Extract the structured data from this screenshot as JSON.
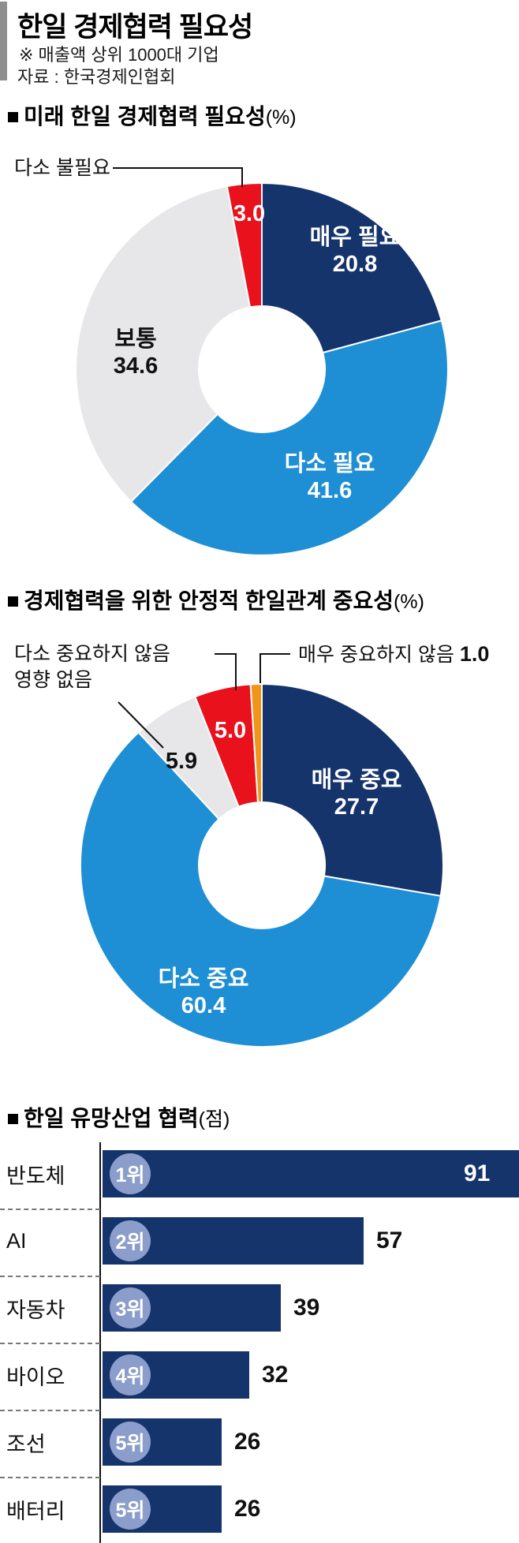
{
  "header": {
    "title": "한일 경제협력 필요성",
    "note": "※ 매출액 상위 1000대 기업",
    "source": "자료 : 한국경제인협회"
  },
  "colors": {
    "navy": "#16346c",
    "light_blue": "#1e8fd4",
    "gray": "#e7e7e9",
    "red": "#e8111c",
    "orange": "#f0941a",
    "badge": "#8b9dca",
    "text": "#111111",
    "header_bar": "#8f8f8f"
  },
  "chart_data": [
    {
      "id": "future-cooperation-necessity",
      "type": "pie",
      "subtype": "donut",
      "title": "미래 한일 경제협력 필요성",
      "unit_display": "(%)",
      "segments": [
        {
          "label": "매우 필요",
          "value": 20.8,
          "display": "20.8",
          "color": "#16346c"
        },
        {
          "label": "다소 필요",
          "value": 41.6,
          "display": "41.6",
          "color": "#1e8fd4"
        },
        {
          "label": "보통",
          "value": 34.6,
          "display": "34.6",
          "color": "#e7e7e9"
        },
        {
          "label": "다소 불필요",
          "value": 3.0,
          "display": "3.0",
          "color": "#e8111c"
        }
      ],
      "layout_hints": {
        "start_angle": "top",
        "direction": "clockwise",
        "callout_labels": [
          "다소 불필요"
        ]
      }
    },
    {
      "id": "stable-relations-importance",
      "type": "pie",
      "subtype": "donut",
      "title": "경제협력을 위한 안정적 한일관계 중요성",
      "unit_display": "(%)",
      "segments": [
        {
          "label": "매우 중요",
          "value": 27.7,
          "display": "27.7",
          "color": "#16346c"
        },
        {
          "label": "다소 중요",
          "value": 60.4,
          "display": "60.4",
          "color": "#1e8fd4"
        },
        {
          "label": "영향 없음",
          "value": 5.9,
          "display": "5.9",
          "color": "#e7e7e9"
        },
        {
          "label": "다소 중요하지 않음",
          "value": 5.0,
          "display": "5.0",
          "color": "#e8111c"
        },
        {
          "label": "매우 중요하지 않음",
          "value": 1.0,
          "display": "1.0",
          "color": "#f0941a"
        }
      ],
      "layout_hints": {
        "start_angle": "top",
        "direction": "clockwise",
        "callout_labels": [
          "다소 중요하지 않음",
          "매우 중요하지 않음",
          "영향 없음"
        ]
      }
    },
    {
      "id": "promising-industry-cooperation",
      "type": "bar",
      "title": "한일 유망산업 협력",
      "unit_display": "(점)",
      "max": 91,
      "rows": [
        {
          "category": "반도체",
          "rank": "1위",
          "value": 91,
          "display": "91"
        },
        {
          "category": "AI",
          "rank": "2위",
          "value": 57,
          "display": "57"
        },
        {
          "category": "자동차",
          "rank": "3위",
          "value": 39,
          "display": "39"
        },
        {
          "category": "바이오",
          "rank": "4위",
          "value": 32,
          "display": "32"
        },
        {
          "category": "조선",
          "rank": "5위",
          "value": 26,
          "display": "26"
        },
        {
          "category": "배터리",
          "rank": "5위",
          "value": 26,
          "display": "26"
        }
      ],
      "layout_hints": {
        "orientation": "horizontal",
        "value_labels": "end-of-bar",
        "rank_badges": true
      }
    }
  ]
}
